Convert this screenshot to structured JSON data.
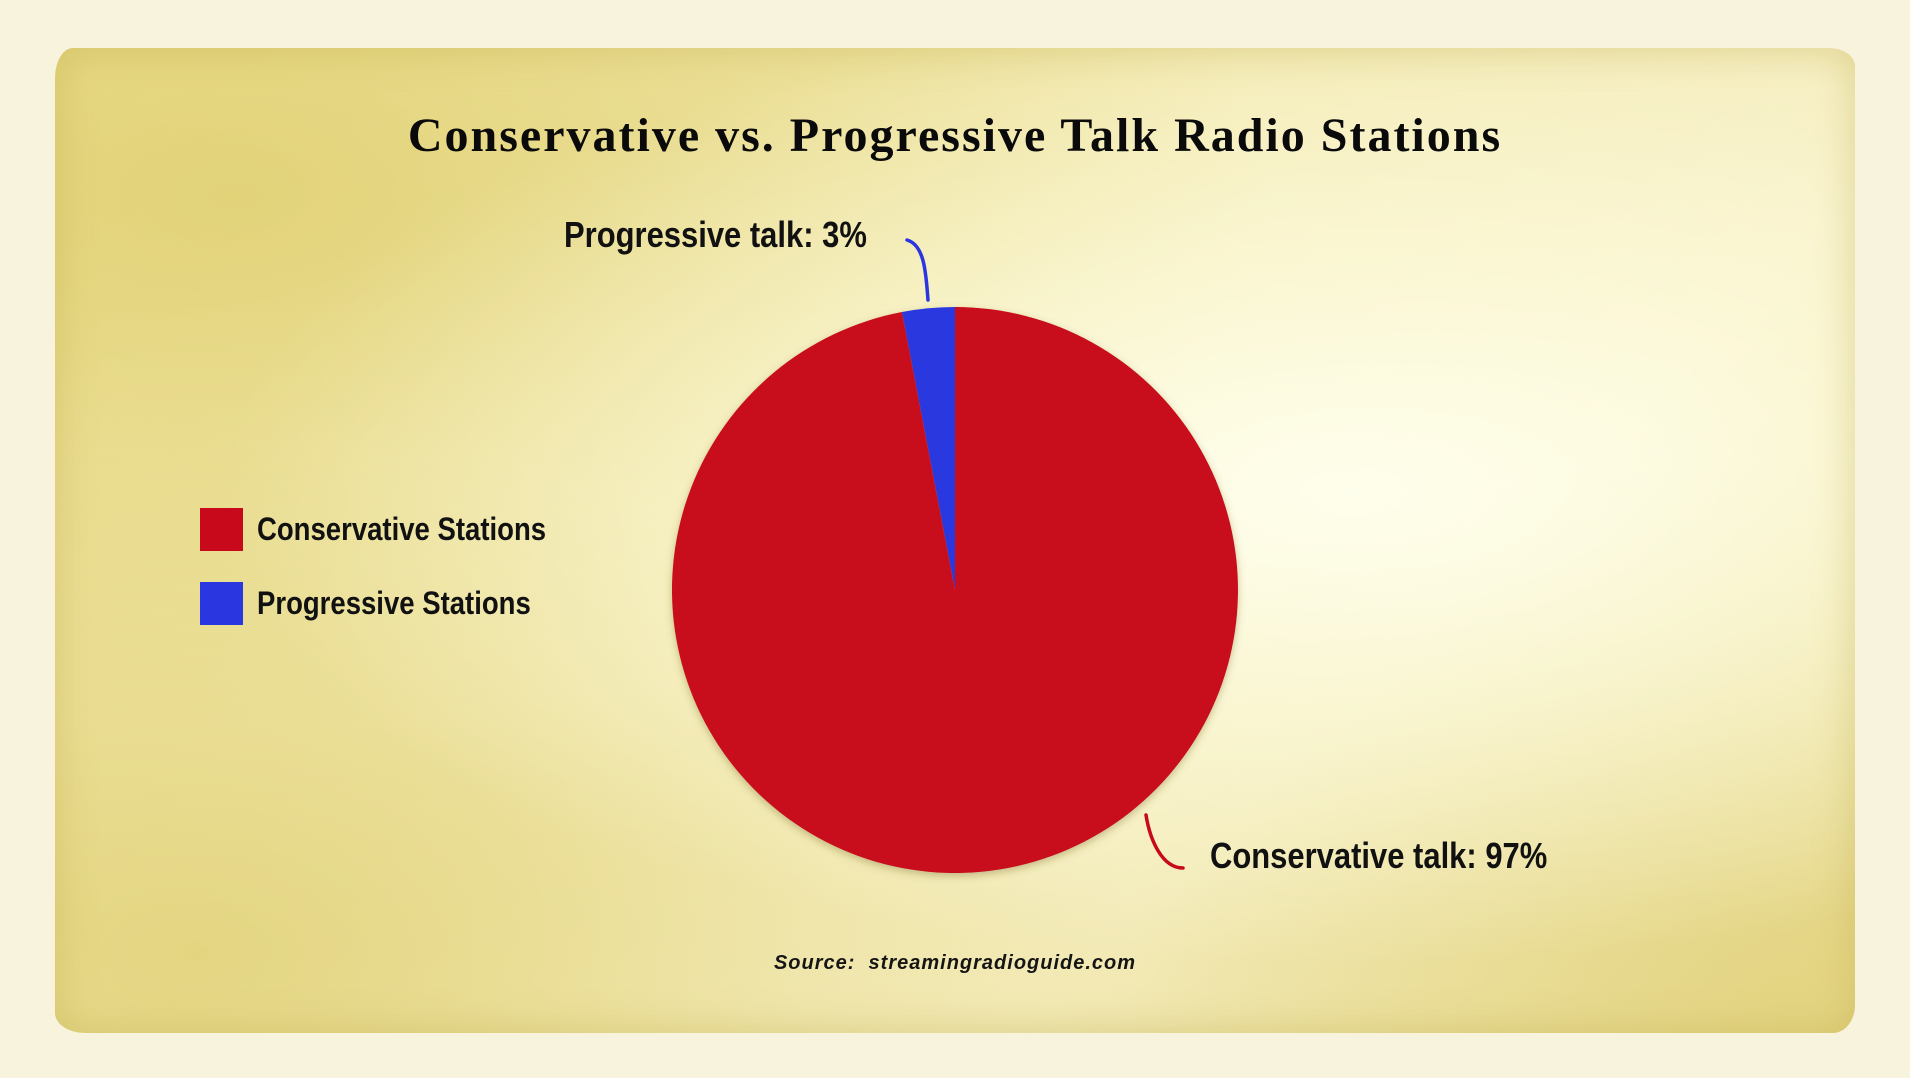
{
  "chart_data": {
    "type": "pie",
    "title": "Conservative vs. Progressive Talk Radio Stations",
    "slices": [
      {
        "label": "Progressive talk: 3%",
        "legend": "Progressive Stations",
        "value": 3,
        "color": "#2a37e0"
      },
      {
        "label": "Conservative talk: 97%",
        "legend": "Conservative Stations",
        "value": 97,
        "color": "#c8081b"
      }
    ],
    "legend_placement": "left",
    "source_prefix": "Source:",
    "source_text": "streamingradioguide.com"
  }
}
